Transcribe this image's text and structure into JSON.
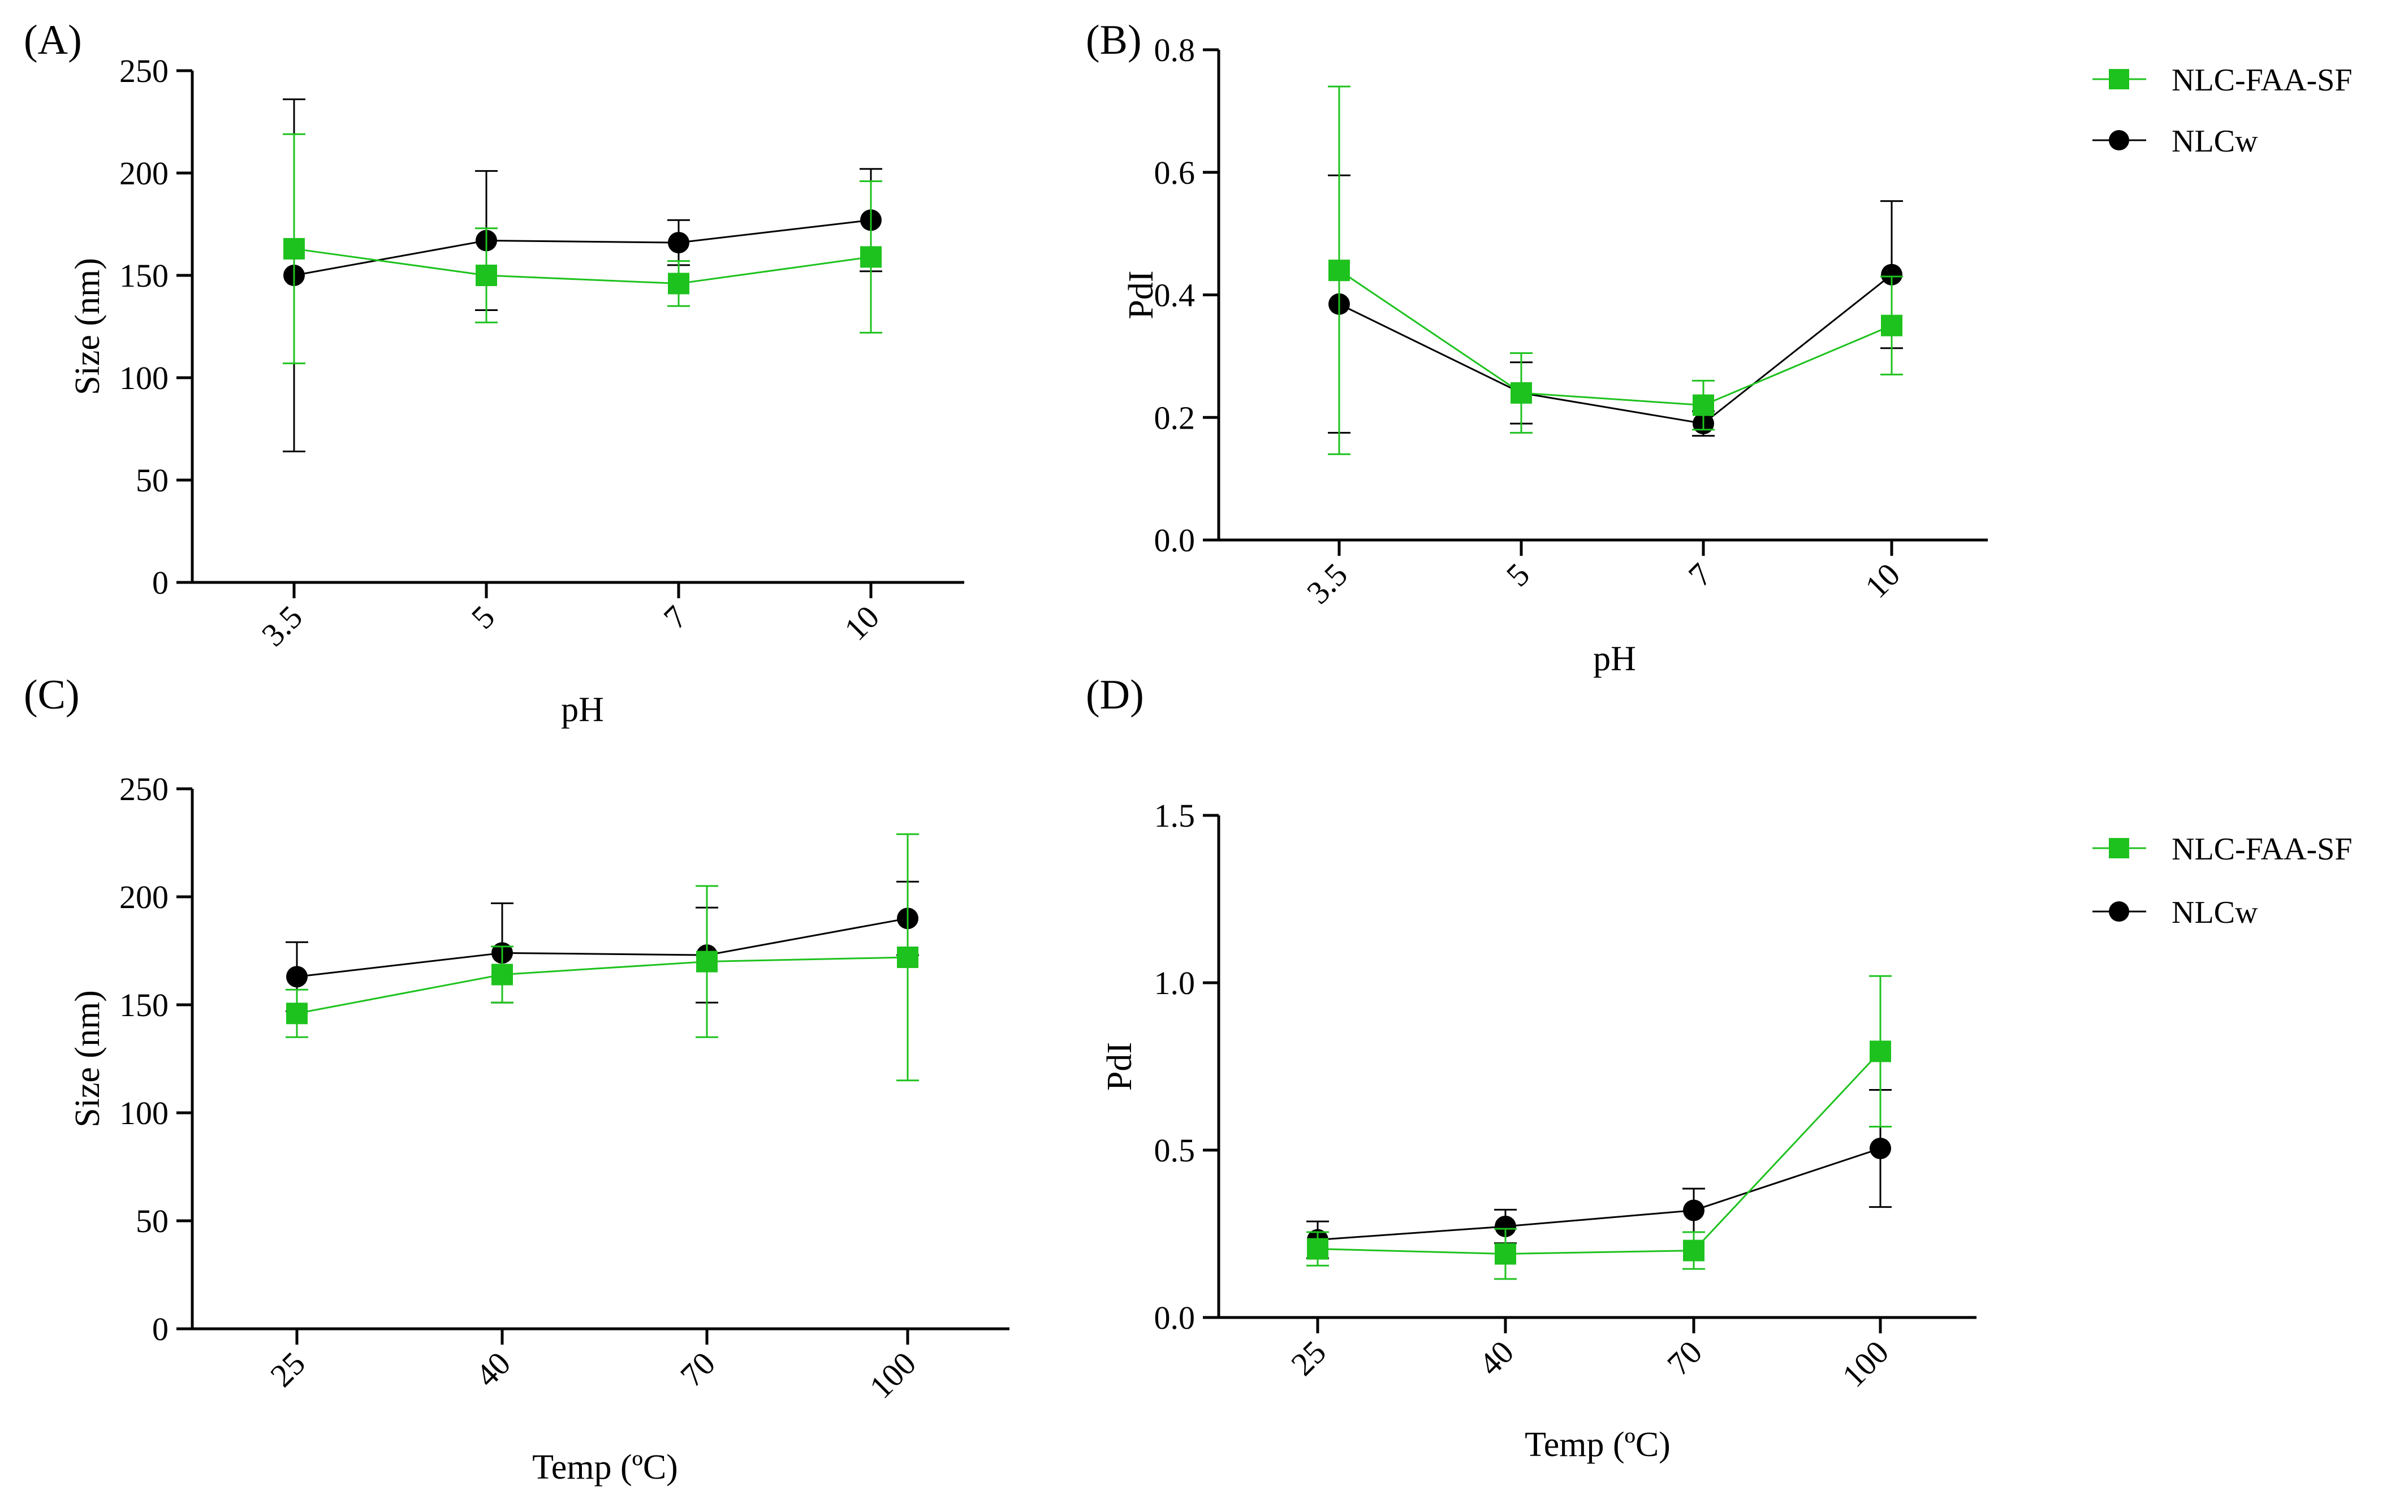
{
  "legend": {
    "entries": [
      {
        "name": "NLC-FAA-SF",
        "color": "#1ec21e",
        "marker": "square"
      },
      {
        "name": "NLCw",
        "color": "#000000",
        "marker": "circle"
      }
    ]
  },
  "chart_data": [
    {
      "panel": "(A)",
      "type": "line",
      "categories": [
        "3.5",
        "5",
        "7",
        "10"
      ],
      "xlabel": "pH",
      "ylabel": "Size (nm)",
      "ylim": [
        0,
        250
      ],
      "yticks": [
        "0",
        "50",
        "100",
        "150",
        "200",
        "250"
      ],
      "ytick_values": [
        0,
        50,
        100,
        150,
        200,
        250
      ],
      "series": [
        {
          "name": "NLC-FAA-SF",
          "values": [
            163,
            150,
            146,
            159
          ],
          "errors": [
            56,
            23,
            11,
            37
          ]
        },
        {
          "name": "NLCw",
          "values": [
            150,
            167,
            166,
            177
          ],
          "errors": [
            86,
            34,
            11,
            25
          ]
        }
      ]
    },
    {
      "panel": "(B)",
      "type": "line",
      "categories": [
        "3.5",
        "5",
        "7",
        "10"
      ],
      "xlabel": "pH",
      "ylabel": "PdI",
      "ylim": [
        0,
        0.8
      ],
      "yticks": [
        "0.0",
        "0.2",
        "0.4",
        "0.6",
        "0.8"
      ],
      "ytick_values": [
        0,
        0.2,
        0.4,
        0.6,
        0.8
      ],
      "series": [
        {
          "name": "NLC-FAA-SF",
          "values": [
            0.44,
            0.24,
            0.22,
            0.35
          ],
          "errors": [
            0.3,
            0.065,
            0.04,
            0.08
          ]
        },
        {
          "name": "NLCw",
          "values": [
            0.385,
            0.24,
            0.19,
            0.433
          ],
          "errors": [
            0.21,
            0.05,
            0.02,
            0.12
          ]
        }
      ]
    },
    {
      "panel": "(C)",
      "type": "line",
      "categories": [
        "25",
        "40",
        "70",
        "100"
      ],
      "xlabel": "Temp (ºC)",
      "ylabel": "Size (nm)",
      "ylim": [
        0,
        250
      ],
      "yticks": [
        "0",
        "50",
        "100",
        "150",
        "200",
        "250"
      ],
      "ytick_values": [
        0,
        50,
        100,
        150,
        200,
        250
      ],
      "series": [
        {
          "name": "NLC-FAA-SF",
          "values": [
            146,
            164,
            170,
            172
          ],
          "errors": [
            11,
            13,
            35,
            57
          ]
        },
        {
          "name": "NLCw",
          "values": [
            163,
            174,
            173,
            190
          ],
          "errors": [
            16,
            23,
            22,
            17
          ]
        }
      ]
    },
    {
      "panel": "(D)",
      "type": "line",
      "categories": [
        "25",
        "40",
        "70",
        "100"
      ],
      "xlabel": "Temp (ºC)",
      "ylabel": "PdI",
      "ylim": [
        0,
        1.5
      ],
      "yticks": [
        "0.0",
        "0.5",
        "1.0",
        "1.5"
      ],
      "ytick_values": [
        0,
        0.5,
        1.0,
        1.5
      ],
      "series": [
        {
          "name": "NLC-FAA-SF",
          "values": [
            0.205,
            0.19,
            0.2,
            0.795
          ],
          "errors": [
            0.05,
            0.075,
            0.055,
            0.225
          ]
        },
        {
          "name": "NLCw",
          "values": [
            0.232,
            0.272,
            0.32,
            0.505
          ],
          "errors": [
            0.055,
            0.05,
            0.065,
            0.175
          ]
        }
      ]
    }
  ]
}
